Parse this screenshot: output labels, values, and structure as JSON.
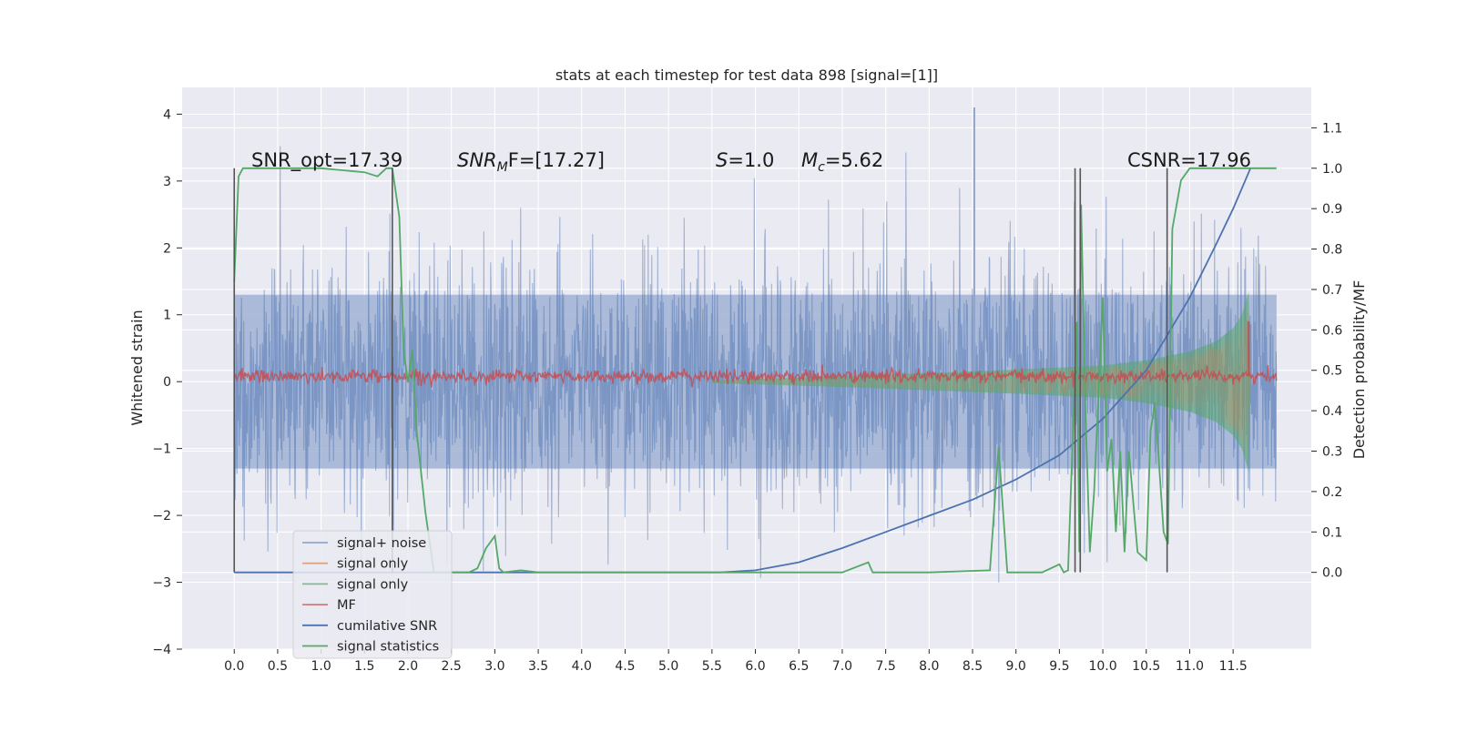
{
  "chart_data": {
    "type": "line",
    "title": "stats at each timestep for test data 898 [signal=[1]]",
    "xlabel": "",
    "ylabel": "Whitened strain",
    "y2label": "Detection probability/MF",
    "xlim": [
      -0.6,
      12.4
    ],
    "ylim": [
      -4.0,
      4.4
    ],
    "y2lim": [
      -0.19,
      1.2
    ],
    "x_ticks": [
      "0.0",
      "0.5",
      "1.0",
      "1.5",
      "2.0",
      "2.5",
      "3.0",
      "3.5",
      "4.0",
      "4.5",
      "5.0",
      "5.5",
      "6.0",
      "6.5",
      "7.0",
      "7.5",
      "8.0",
      "8.5",
      "9.0",
      "9.5",
      "10.0",
      "10.5",
      "11.0",
      "11.5"
    ],
    "y_ticks": [
      4,
      3,
      2,
      1,
      0,
      -1,
      -2,
      -3,
      -4
    ],
    "y_tick_labels": [
      "4",
      "3",
      "2",
      "1",
      "0",
      "−1",
      "−2",
      "−3",
      "−4"
    ],
    "y2_ticks": [
      "1.1",
      "1.0",
      "0.9",
      "0.8",
      "0.7",
      "0.6",
      "0.5",
      "0.4",
      "0.3",
      "0.2",
      "0.1",
      "0.0"
    ],
    "grid": true,
    "legend_position": "lower-left",
    "annotations": {
      "snr_opt": "SNR_opt=17.39",
      "snr_mf_main": "SNR",
      "snr_mf_sub": "M",
      "snr_mf_rest": "F=[17.27]",
      "s_italic": "S",
      "s_rest": "=1.0",
      "mc_italic": "M",
      "mc_sub": "c",
      "mc_rest": "=5.62",
      "csnr": "CSNR=17.96"
    },
    "vertical_markers_x": [
      0.0,
      1.82,
      9.68,
      9.74,
      10.74
    ],
    "series": [
      {
        "name": "signal+ noise",
        "color": "#4c72b0",
        "axis": "left",
        "style": "dense noise, std ~0.8, x from 0 to 12.0",
        "envelope": [
          [
            0.0,
            1.3
          ],
          [
            12.0,
            1.3
          ]
        ]
      },
      {
        "name": "signal only",
        "color": "#dd8452",
        "axis": "left",
        "style": "chirp oscillation growing in amplitude"
      },
      {
        "name": "signal only",
        "color": "#55a868",
        "axis": "left",
        "style": "chirp envelope",
        "envelope": [
          [
            5.5,
            0.02
          ],
          [
            7.0,
            0.08
          ],
          [
            8.0,
            0.13
          ],
          [
            9.0,
            0.18
          ],
          [
            10.0,
            0.24
          ],
          [
            10.5,
            0.32
          ],
          [
            11.0,
            0.45
          ],
          [
            11.3,
            0.6
          ],
          [
            11.5,
            0.8
          ],
          [
            11.6,
            1.0
          ],
          [
            11.68,
            1.35
          ],
          [
            11.7,
            0.0
          ]
        ]
      },
      {
        "name": "MF",
        "color": "#c44e52",
        "axis": "left",
        "style": "small noise around 0.08, spike near 11.68",
        "spike": [
          11.68,
          0.9
        ]
      },
      {
        "name": "cumilative SNR",
        "color": "#4c72b0",
        "axis": "right",
        "x": [
          0.0,
          5.6,
          6.0,
          6.5,
          7.0,
          7.5,
          8.0,
          8.5,
          9.0,
          9.5,
          10.0,
          10.5,
          11.0,
          11.3,
          11.5,
          11.7
        ],
        "values": [
          0.0,
          0.0,
          0.005,
          0.025,
          0.06,
          0.1,
          0.14,
          0.18,
          0.23,
          0.29,
          0.38,
          0.5,
          0.68,
          0.81,
          0.9,
          1.0
        ]
      },
      {
        "name": "signal statistics",
        "color": "#55a868",
        "axis": "right",
        "x": [
          0.0,
          0.05,
          0.1,
          0.3,
          1.0,
          1.5,
          1.65,
          1.75,
          1.82,
          1.9,
          1.95,
          2.0,
          2.05,
          2.1,
          2.2,
          2.3,
          2.5,
          2.7,
          2.8,
          2.9,
          3.0,
          3.05,
          3.1,
          3.3,
          3.5,
          5.0,
          7.0,
          7.3,
          7.35,
          7.45,
          7.5,
          8.0,
          8.7,
          8.8,
          8.9,
          8.95,
          9.1,
          9.3,
          9.5,
          9.55,
          9.6,
          9.7,
          9.73,
          9.75,
          9.8,
          9.85,
          9.9,
          10.0,
          10.05,
          10.1,
          10.15,
          10.2,
          10.25,
          10.3,
          10.4,
          10.5,
          10.55,
          10.6,
          10.7,
          10.75,
          10.8,
          10.9,
          11.0,
          11.5,
          12.0
        ],
        "values": [
          0.72,
          0.98,
          1.0,
          1.0,
          1.0,
          0.99,
          0.98,
          1.0,
          1.0,
          0.88,
          0.55,
          0.47,
          0.55,
          0.35,
          0.15,
          0.0,
          0.0,
          0.0,
          0.01,
          0.06,
          0.09,
          0.01,
          0.0,
          0.005,
          0.0,
          0.0,
          0.0,
          0.025,
          0.0,
          0.0,
          0.0,
          0.0,
          0.005,
          0.31,
          0.0,
          0.0,
          0.0,
          0.0,
          0.02,
          0.0,
          0.005,
          0.62,
          0.05,
          0.91,
          0.4,
          0.05,
          0.2,
          0.68,
          0.25,
          0.33,
          0.1,
          0.3,
          0.05,
          0.3,
          0.05,
          0.03,
          0.35,
          0.42,
          0.1,
          0.07,
          0.85,
          0.97,
          1.0,
          1.0,
          1.0
        ]
      }
    ],
    "legend": [
      "signal+ noise",
      "signal only",
      "signal only",
      "MF",
      "cumilative SNR",
      "signal statistics"
    ]
  }
}
